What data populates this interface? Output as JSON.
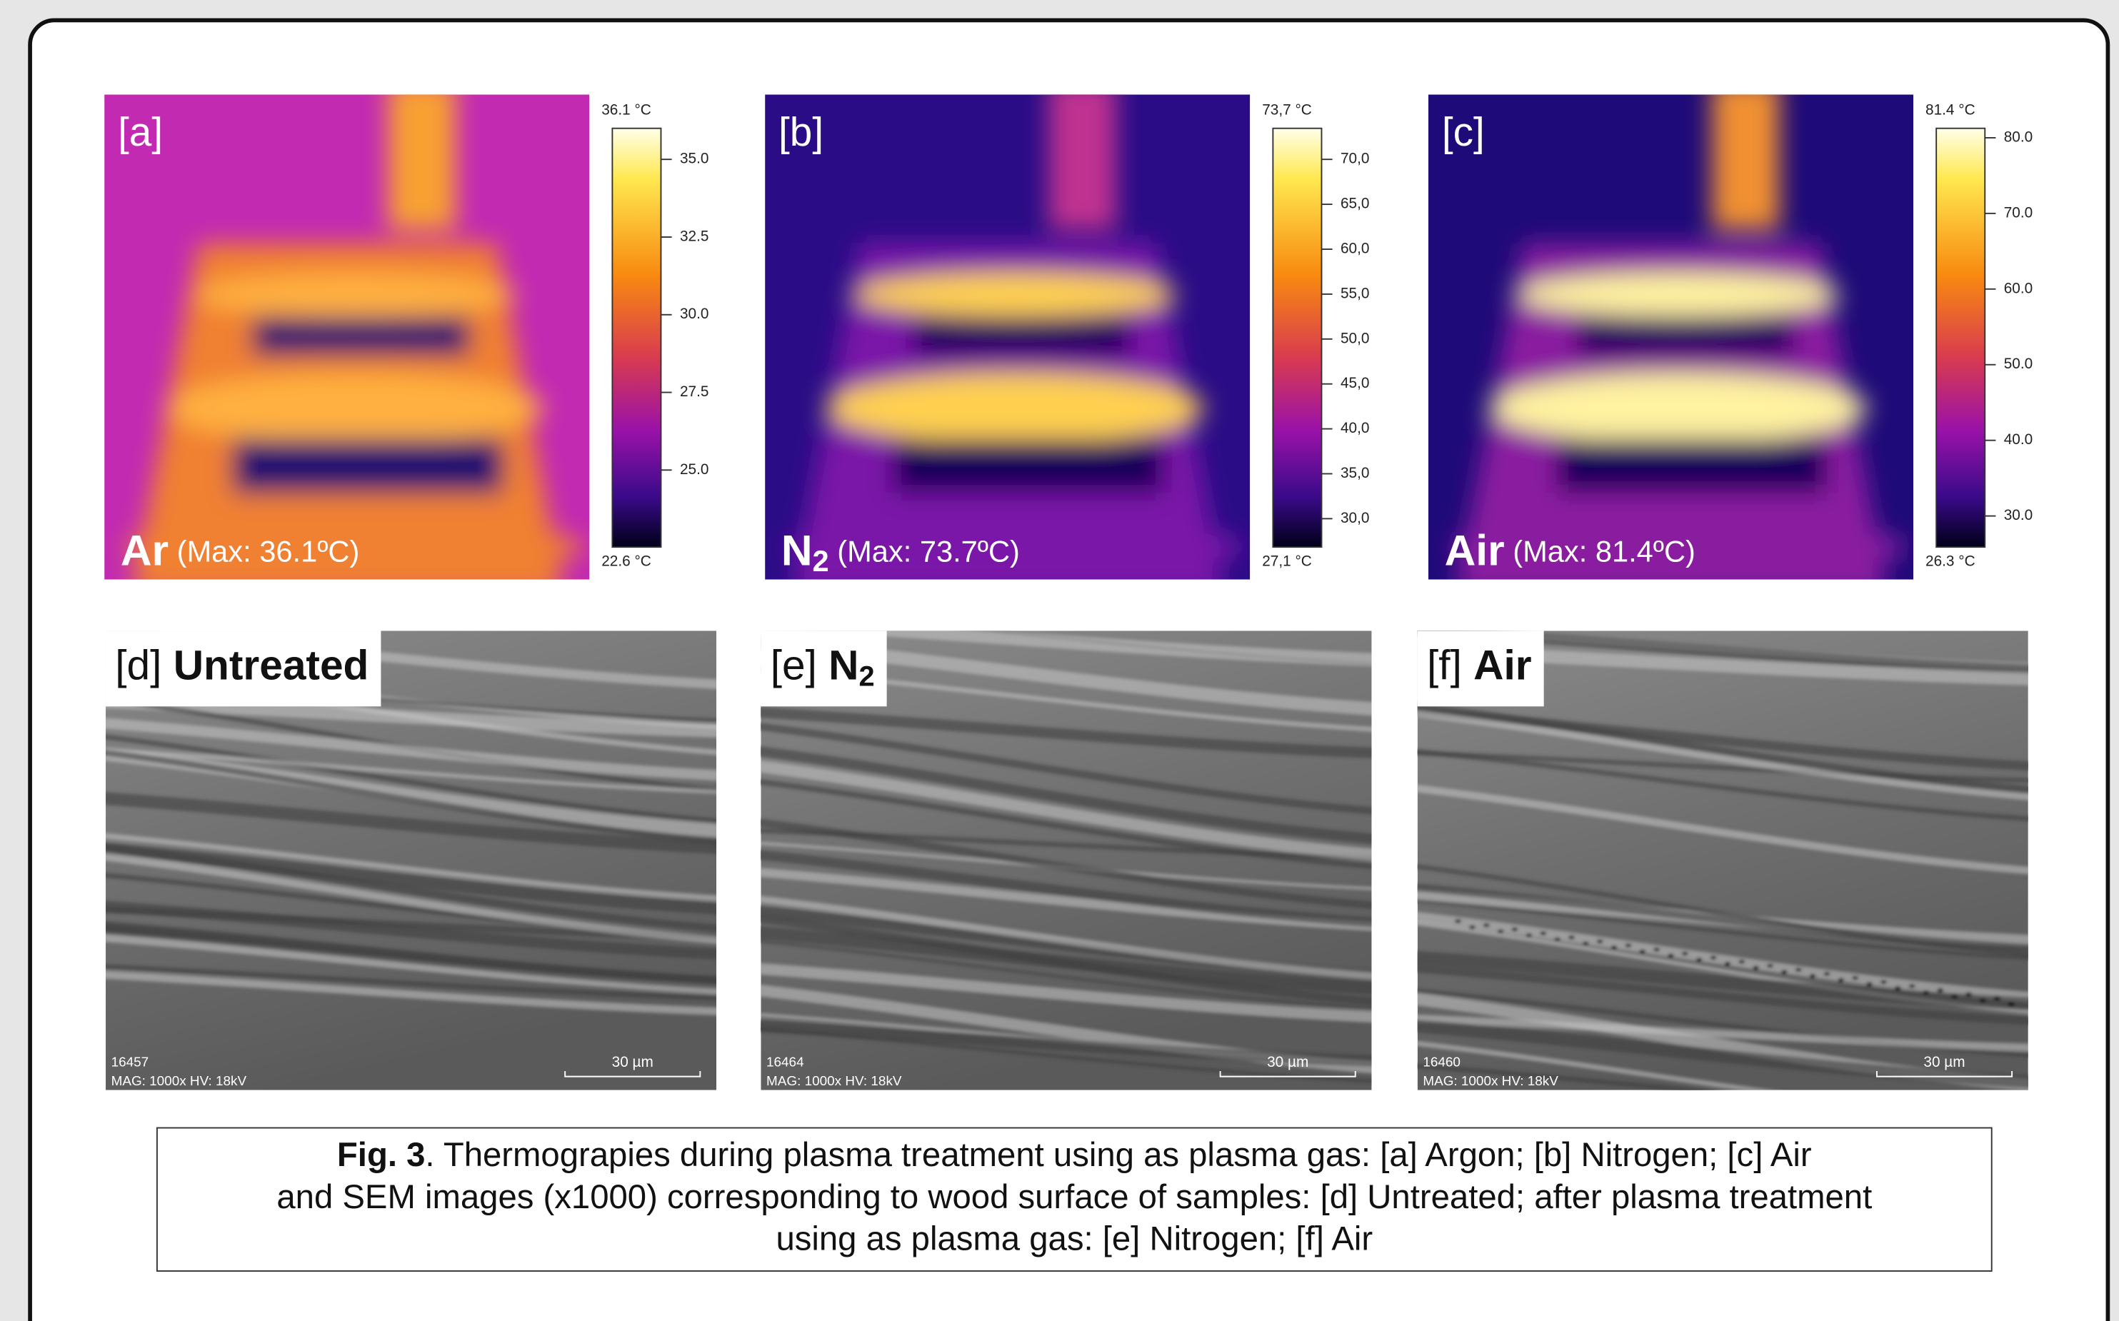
{
  "thermal_panels": [
    {
      "label": "[a]",
      "gas": "Ar",
      "max": " (Max: 36.1ºC)",
      "colorbar": {
        "max": "36.1 °C",
        "min": "22.6 °C",
        "ticks": [
          "35.0",
          "32.5",
          "30.0",
          "27.5",
          "25.0"
        ]
      }
    },
    {
      "label": "[b]",
      "gas": "N",
      "gas_sub": "2",
      "max": " (Max: 73.7ºC)",
      "colorbar": {
        "max": "73,7 °C",
        "min": "27,1 °C",
        "ticks": [
          "70,0",
          "65,0",
          "60,0",
          "55,0",
          "50,0",
          "45,0",
          "40,0",
          "35,0",
          "30,0"
        ]
      }
    },
    {
      "label": "[c]",
      "gas": "Air",
      "max": " (Max: 81.4ºC)",
      "colorbar": {
        "max": "81.4 °C",
        "min": "26.3 °C",
        "ticks": [
          "80.0",
          "70.0",
          "60.0",
          "50.0",
          "40.0",
          "30.0"
        ]
      }
    }
  ],
  "sem_panels": [
    {
      "label": "[d] ",
      "title": "Untreated",
      "id": "16457",
      "info": "MAG: 1000x  HV: 18kV",
      "scale": "30 µm"
    },
    {
      "label": "[e] ",
      "title": "N",
      "title_sub": "2",
      "id": "16464",
      "info": "MAG: 1000x  HV: 18kV",
      "scale": "30 µm"
    },
    {
      "label": "[f] ",
      "title": "Air",
      "id": "16460",
      "info": "MAG: 1000x  HV: 18kV",
      "scale": "30 µm"
    }
  ],
  "caption": {
    "bold": "Fig. 3",
    "lines": [
      ". Thermograpies during plasma treatment using as plasma gas: [a] Argon; [b] Nitrogen; [c] Air",
      "and SEM images (x1000) corresponding to wood surface of samples: [d] Untreated; after plasma treatment",
      "using as plasma gas: [e] Nitrogen; [f] Air"
    ]
  }
}
